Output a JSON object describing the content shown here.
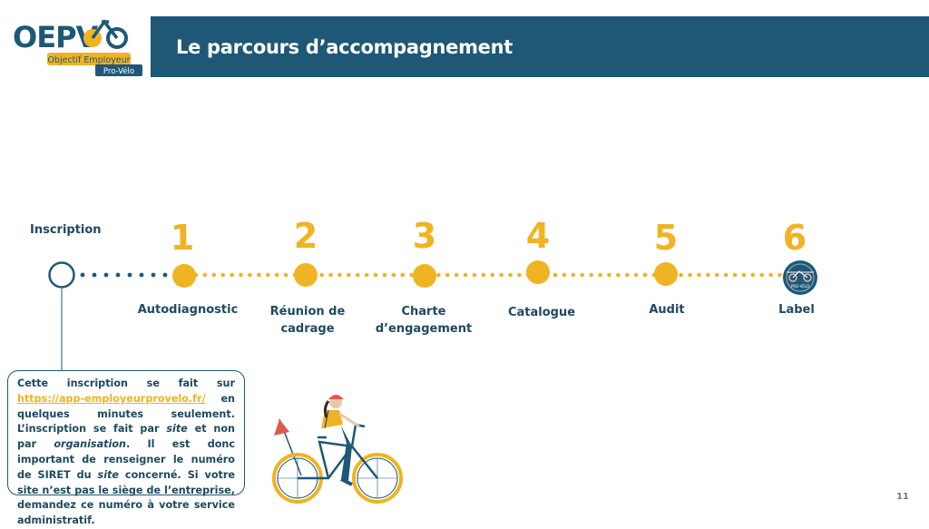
{
  "logo": {
    "letters": "OEPV",
    "tagline_line1": "Objectif Employeur",
    "tagline_line2": "Pro-Vélo",
    "badge_text": "PRO-VÉLO"
  },
  "header": {
    "title": "Le parcours d’accompagnement"
  },
  "timeline": {
    "start_label": "Inscription",
    "steps": [
      {
        "number": "1",
        "label_line1": "Autodiagnostic",
        "label_line2": ""
      },
      {
        "number": "2",
        "label_line1": "Réunion de",
        "label_line2": "cadrage"
      },
      {
        "number": "3",
        "label_line1": "Charte",
        "label_line2": "d’engagement"
      },
      {
        "number": "4",
        "label_line1": "Catalogue",
        "label_line2": ""
      },
      {
        "number": "5",
        "label_line1": "Audit",
        "label_line2": ""
      },
      {
        "number": "6",
        "label_line1": "Label",
        "label_line2": ""
      }
    ]
  },
  "info": {
    "p1": "Cette inscription se fait sur ",
    "link": "https://app-employeurprovelo.fr/",
    "p2": " en quelques minutes seulement. L’inscription se fait par ",
    "em1": "site",
    "p3": " et non par ",
    "em2": "organisation",
    "p4": ". Il est donc important de renseigner le numéro de SIRET du ",
    "em3": "site",
    "p5": " concerné. Si votre site n’est pas le siège de l’entreprise, demandez ce numéro à votre service administratif."
  },
  "page_number": "11",
  "colors": {
    "navy": "#1e5876",
    "gold": "#f0b323",
    "text": "#1d4a60"
  }
}
